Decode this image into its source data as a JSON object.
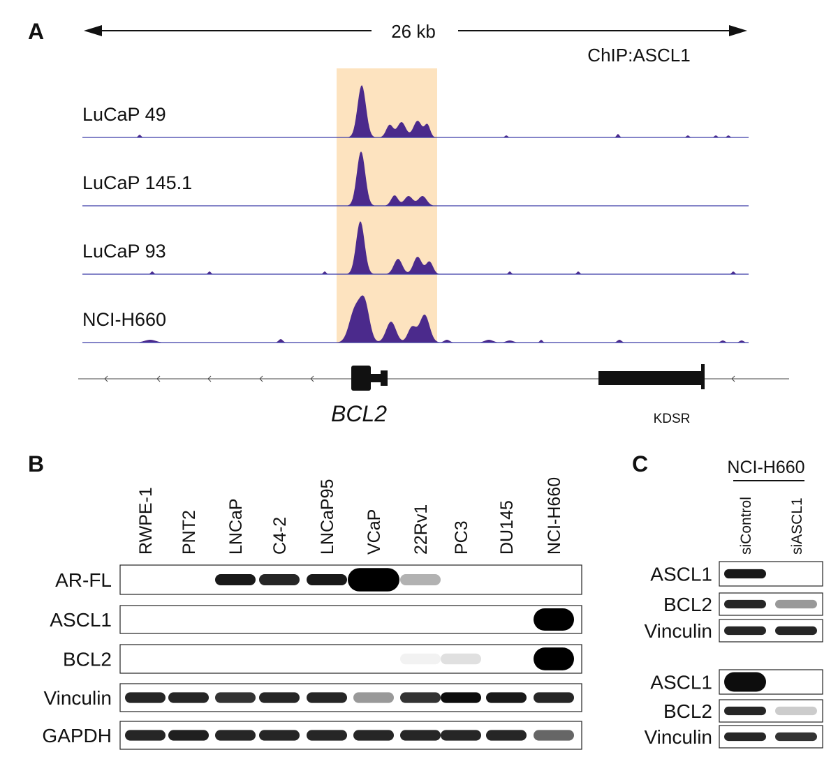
{
  "panel_a": {
    "label": "A",
    "scale": "26 kb",
    "chip": "ChIP:ASCL1",
    "tracks": [
      "LuCaP 49",
      "LuCaP 145.1",
      "LuCaP 93",
      "NCI-H660"
    ],
    "genes": [
      "BCL2",
      "KDSR"
    ]
  },
  "panel_b": {
    "label": "B",
    "lanes": [
      "RWPE-1",
      "PNT2",
      "LNCaP",
      "C4-2",
      "LNCaP95",
      "VCaP",
      "22Rv1",
      "PC3",
      "DU145",
      "NCI-H660"
    ],
    "rows": [
      "AR-FL",
      "ASCL1",
      "BCL2",
      "Vinculin",
      "GAPDH"
    ]
  },
  "panel_c": {
    "label": "C",
    "group": "NCI-H660",
    "lanes": [
      "siControl",
      "siASCL1"
    ],
    "blots": [
      [
        "ASCL1",
        "BCL2",
        "Vinculin"
      ],
      [
        "ASCL1",
        "BCL2",
        "Vinculin"
      ]
    ]
  }
}
